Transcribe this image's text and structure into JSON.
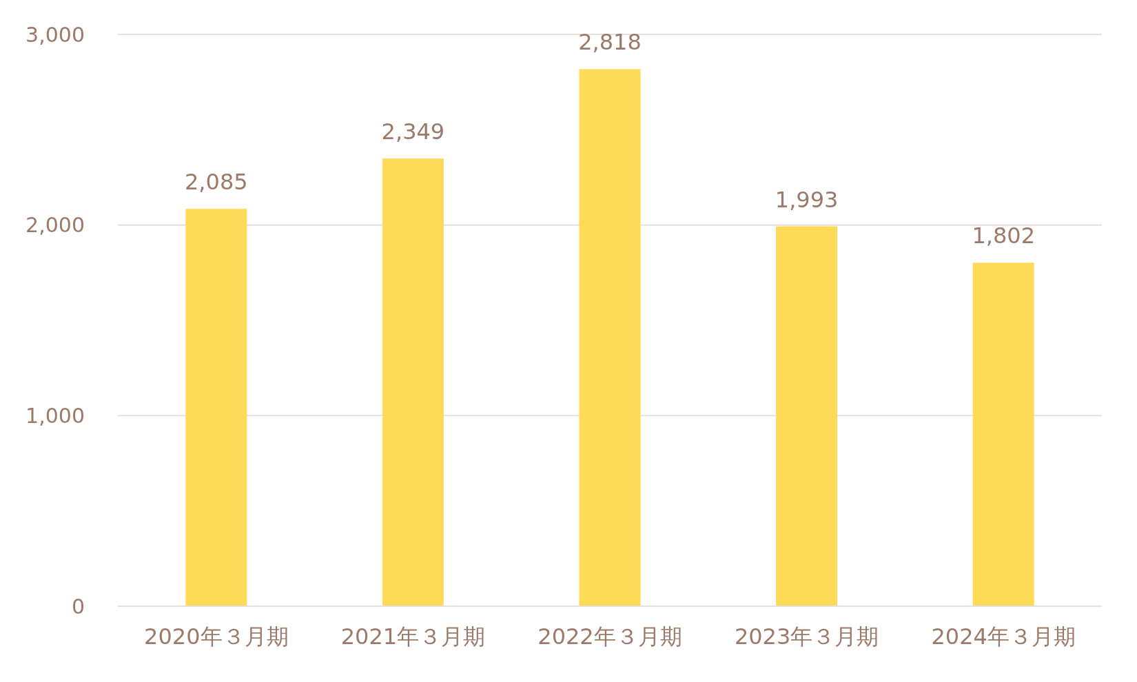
{
  "chart_data": {
    "type": "bar",
    "categories": [
      "2020年３月期",
      "2021年３月期",
      "2022年３月期",
      "2023年３月期",
      "2024年３月期"
    ],
    "values": [
      2085,
      2349,
      2818,
      1993,
      1802
    ],
    "value_labels": [
      "2,085",
      "2,349",
      "2,818",
      "1,993",
      "1,802"
    ],
    "color": "#ffda57",
    "ylim": [
      0,
      3000
    ],
    "yticks": [
      {
        "value": 0,
        "label": "0"
      },
      {
        "value": 1000,
        "label": "1,000"
      },
      {
        "value": 2000,
        "label": "2,000"
      },
      {
        "value": 3000,
        "label": "3,000"
      }
    ],
    "grid": "y"
  }
}
